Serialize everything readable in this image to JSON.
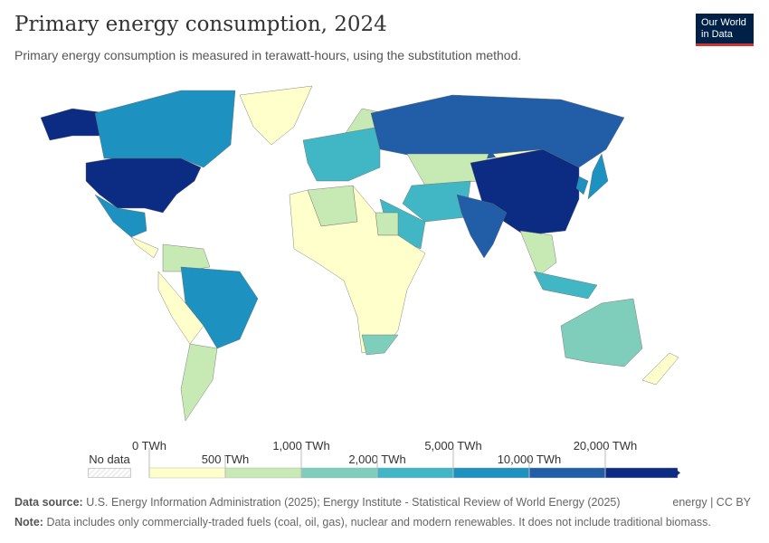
{
  "header": {
    "title": "Primary energy consumption, 2024",
    "subtitle": "Primary energy consumption is measured in terawatt-hours, using the substitution method.",
    "logo": "Our World in Data",
    "logo_line1": "Our World",
    "logo_line2": "in Data"
  },
  "legend": {
    "no_data": "No data",
    "labels_top": [
      "0 TWh",
      "1,000 TWh",
      "5,000 TWh",
      "20,000 TWh"
    ],
    "labels_bottom": [
      "500 TWh",
      "2,000 TWh",
      "10,000 TWh"
    ],
    "bins": [
      "#ffffcc",
      "#c7e9b4",
      "#7fcdbb",
      "#41b6c4",
      "#1d91c0",
      "#225ea8",
      "#0c2c84"
    ],
    "no_data_color": "#eeeeee"
  },
  "map_regions": {
    "United States": 6,
    "Alaska": 6,
    "Canada": 4,
    "Greenland": 0,
    "Mexico": 4,
    "Central America": 0,
    "Colombia/Venezuela": 1,
    "Brazil": 4,
    "Andes": 0,
    "Argentina": 1,
    "Europe": 3,
    "Scandinavia": 1,
    "Russia": 5,
    "Kazakhstan": 1,
    "Iran": 3,
    "Saudi Arabia": 3,
    "Mongolia": 0,
    "China": 6,
    "India": 5,
    "Southeast Asia": 1,
    "Japan": 4,
    "Korea": 4,
    "Algeria": 1,
    "Egypt": 1,
    "Africa": 0,
    "South Africa": 2,
    "Indonesia": 3,
    "Australia": 2,
    "New Zealand": 0
  },
  "footer": {
    "source_label": "Data source:",
    "source": "U.S. Energy Information Administration (2025); Energy Institute - Statistical Review of World Energy (2025)",
    "note_label": "Note:",
    "note": "Data includes only commercially-traded fuels (coal, oil, gas), nuclear and modern renewables. It does not include traditional biomass.",
    "credit": "energy | CC BY"
  }
}
